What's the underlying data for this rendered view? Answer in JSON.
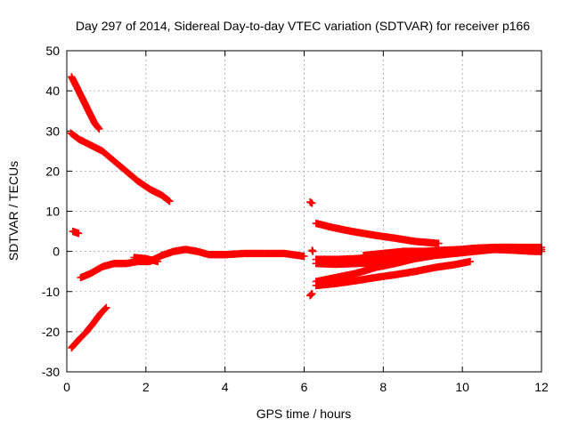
{
  "chart_data": {
    "type": "scatter",
    "title": "Day 297 of 2014, Sidereal Day-to-day VTEC variation (SDTVAR) for receiver p166",
    "xlabel": "GPS time / hours",
    "ylabel": "SDTVAR / TECUs",
    "xlim": [
      0,
      12
    ],
    "ylim": [
      -30,
      50
    ],
    "xticks": [
      0,
      2,
      4,
      6,
      8,
      10,
      12
    ],
    "yticks": [
      -30,
      -20,
      -10,
      0,
      10,
      20,
      30,
      40,
      50
    ],
    "grid": true,
    "legend": "none",
    "marker": "plus",
    "color": "#ff0000",
    "series": [
      {
        "points": [
          [
            0.12,
            43.5
          ],
          [
            0.25,
            41
          ],
          [
            0.4,
            38
          ],
          [
            0.55,
            35
          ],
          [
            0.7,
            32
          ],
          [
            0.82,
            30.5
          ]
        ]
      },
      {
        "points": [
          [
            0.1,
            29.5
          ],
          [
            0.3,
            28
          ],
          [
            0.6,
            26.5
          ],
          [
            0.9,
            25
          ],
          [
            1.2,
            22.5
          ],
          [
            1.5,
            20
          ],
          [
            1.8,
            17.5
          ],
          [
            2.1,
            15.5
          ],
          [
            2.4,
            14
          ],
          [
            2.6,
            12.5
          ]
        ]
      },
      {
        "points": [
          [
            0.15,
            5
          ],
          [
            0.3,
            4.5
          ]
        ]
      },
      {
        "points": [
          [
            0.12,
            -24
          ],
          [
            0.3,
            -22
          ],
          [
            0.5,
            -20
          ],
          [
            0.7,
            -17.5
          ],
          [
            0.85,
            -15.5
          ],
          [
            1.0,
            -14
          ]
        ]
      },
      {
        "points": [
          [
            0.35,
            -6.5
          ],
          [
            0.6,
            -5.5
          ],
          [
            0.9,
            -3.8
          ],
          [
            1.2,
            -3
          ],
          [
            1.5,
            -3
          ],
          [
            1.8,
            -2.5
          ],
          [
            2.1,
            -2.5
          ],
          [
            2.4,
            -1
          ],
          [
            2.7,
            0
          ],
          [
            3.0,
            0.5
          ],
          [
            3.3,
            0
          ],
          [
            3.6,
            -0.8
          ],
          [
            4.0,
            -0.8
          ],
          [
            4.5,
            -0.5
          ],
          [
            5.0,
            -0.5
          ],
          [
            5.5,
            -0.5
          ],
          [
            6.0,
            -1.2
          ]
        ]
      },
      {
        "points": [
          [
            1.7,
            -1.5
          ],
          [
            2.0,
            -1.8
          ],
          [
            2.3,
            -2.5
          ]
        ]
      },
      {
        "points": [
          [
            6.15,
            12.3
          ],
          [
            6.2,
            12
          ]
        ]
      },
      {
        "points": [
          [
            6.15,
            -11
          ],
          [
            6.2,
            -10.5
          ]
        ]
      },
      {
        "points": [
          [
            6.2,
            0.3
          ],
          [
            6.22,
            0
          ]
        ]
      },
      {
        "points": [
          [
            6.3,
            7
          ],
          [
            6.7,
            6
          ],
          [
            7.2,
            5
          ],
          [
            7.8,
            4
          ],
          [
            8.3,
            3.3
          ],
          [
            8.8,
            2.5
          ],
          [
            9.4,
            2
          ]
        ]
      },
      {
        "points": [
          [
            6.3,
            -2
          ],
          [
            6.8,
            -2
          ],
          [
            7.3,
            -1.8
          ],
          [
            7.8,
            -1.5
          ],
          [
            8.3,
            -1
          ],
          [
            8.8,
            -0.5
          ],
          [
            9.3,
            0
          ],
          [
            9.8,
            0.3
          ],
          [
            10.3,
            0.8
          ],
          [
            10.8,
            1
          ],
          [
            11.3,
            1
          ],
          [
            11.8,
            0.8
          ],
          [
            12.0,
            0.5
          ]
        ]
      },
      {
        "points": [
          [
            6.3,
            -3
          ],
          [
            6.8,
            -3.2
          ],
          [
            7.3,
            -3
          ],
          [
            7.8,
            -2.8
          ],
          [
            8.3,
            -2.5
          ],
          [
            8.8,
            -1.8
          ],
          [
            9.3,
            -1
          ],
          [
            9.8,
            -0.5
          ],
          [
            10.3,
            0
          ],
          [
            10.8,
            0.5
          ],
          [
            11.3,
            0.3
          ],
          [
            11.8,
            0
          ],
          [
            12.0,
            0
          ]
        ]
      },
      {
        "points": [
          [
            6.3,
            -7.5
          ],
          [
            6.8,
            -6.5
          ],
          [
            7.3,
            -5.5
          ],
          [
            7.8,
            -4
          ],
          [
            8.3,
            -3
          ],
          [
            8.8,
            -1.8
          ],
          [
            9.3,
            -0.8
          ],
          [
            9.8,
            0
          ],
          [
            10.3,
            0.3
          ],
          [
            10.8,
            0.5
          ]
        ]
      },
      {
        "points": [
          [
            6.3,
            -8.5
          ],
          [
            6.8,
            -8
          ],
          [
            7.3,
            -7.3
          ],
          [
            7.8,
            -6.5
          ],
          [
            8.3,
            -5.8
          ],
          [
            8.8,
            -5
          ],
          [
            9.3,
            -4
          ],
          [
            9.8,
            -3.3
          ],
          [
            10.2,
            -2.5
          ]
        ]
      },
      {
        "points": [
          [
            7.5,
            -1
          ],
          [
            8.0,
            -0.5
          ],
          [
            8.5,
            0
          ],
          [
            9.0,
            0
          ],
          [
            9.5,
            0.3
          ],
          [
            10.0,
            0.5
          ],
          [
            10.5,
            0.8
          ],
          [
            11.0,
            1
          ],
          [
            11.5,
            1
          ],
          [
            12.0,
            1
          ]
        ]
      }
    ]
  }
}
